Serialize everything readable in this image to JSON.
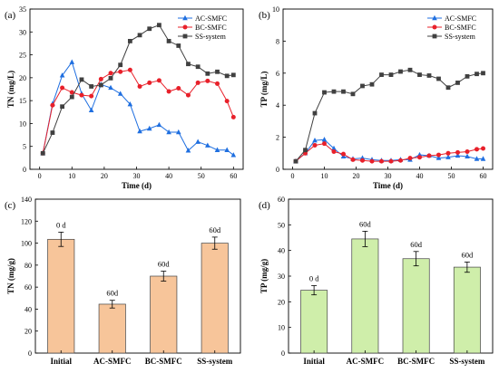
{
  "colors": {
    "ac": "#1f6fe0",
    "bc": "#e8202a",
    "ss": "#404040",
    "bar_tn": "#f7c59a",
    "bar_tp": "#cfeeaa"
  },
  "chart_data": [
    {
      "panel": "(a)",
      "type": "line",
      "xlabel": "Time (d)",
      "ylabel": "TN (mg/L)",
      "xlim": [
        -3,
        63
      ],
      "ylim": [
        0,
        35
      ],
      "xticks": [
        0,
        10,
        20,
        30,
        40,
        50,
        60
      ],
      "yticks": [
        0,
        5,
        10,
        15,
        20,
        25,
        30,
        35
      ],
      "legend": "top-right",
      "series": [
        {
          "name": "AC-SMFC",
          "marker": "triangle",
          "color_key": "ac",
          "x": [
            1,
            4,
            7,
            10,
            13,
            16,
            19,
            22,
            25,
            28,
            31,
            34,
            37,
            40,
            43,
            46,
            49,
            52,
            55,
            58,
            60
          ],
          "y": [
            3.5,
            14.3,
            20.5,
            23.4,
            16.5,
            12.9,
            18.5,
            17.8,
            16.5,
            14.2,
            8.3,
            8.9,
            9.7,
            8.1,
            8.1,
            4.1,
            6.0,
            5.2,
            4.2,
            4.2,
            3.1
          ]
        },
        {
          "name": "BC-SMFC",
          "marker": "circle",
          "color_key": "bc",
          "x": [
            1,
            4,
            7,
            10,
            13,
            16,
            19,
            22,
            25,
            28,
            31,
            34,
            37,
            40,
            43,
            46,
            49,
            52,
            55,
            58,
            60
          ],
          "y": [
            3.5,
            14.0,
            17.8,
            16.8,
            16.2,
            16.0,
            19.7,
            21.0,
            21.3,
            21.7,
            18.1,
            18.9,
            19.4,
            17.0,
            17.7,
            16.2,
            18.9,
            19.3,
            18.7,
            14.9,
            11.4
          ]
        },
        {
          "name": "SS-system",
          "marker": "square",
          "color_key": "ss",
          "x": [
            1,
            4,
            7,
            10,
            13,
            16,
            19,
            22,
            25,
            28,
            31,
            34,
            37,
            40,
            43,
            46,
            49,
            52,
            55,
            58,
            60
          ],
          "y": [
            3.5,
            8.0,
            13.7,
            15.8,
            19.6,
            18.1,
            18.4,
            19.9,
            22.8,
            28.0,
            29.3,
            30.7,
            31.5,
            28.0,
            27.0,
            23.0,
            22.4,
            20.9,
            21.3,
            20.4,
            20.6
          ]
        }
      ]
    },
    {
      "panel": "(b)",
      "type": "line",
      "xlabel": "Time (d)",
      "ylabel": "TP (mg/L)",
      "xlim": [
        -3,
        63
      ],
      "ylim": [
        0,
        10
      ],
      "xticks": [
        0,
        10,
        20,
        30,
        40,
        50,
        60
      ],
      "yticks": [
        0,
        2,
        4,
        6,
        8,
        10
      ],
      "legend": "top-right",
      "series": [
        {
          "name": "AC-SMFC",
          "marker": "triangle",
          "color_key": "ac",
          "x": [
            1,
            4,
            7,
            10,
            13,
            16,
            19,
            22,
            25,
            28,
            31,
            34,
            37,
            40,
            43,
            46,
            49,
            52,
            55,
            58,
            60
          ],
          "y": [
            0.5,
            1.0,
            1.8,
            1.85,
            1.3,
            0.8,
            0.65,
            0.7,
            0.6,
            0.55,
            0.55,
            0.6,
            0.6,
            0.9,
            0.85,
            0.7,
            0.75,
            0.85,
            0.8,
            0.65,
            0.65
          ]
        },
        {
          "name": "BC-SMFC",
          "marker": "circle",
          "color_key": "bc",
          "x": [
            1,
            4,
            7,
            10,
            13,
            16,
            19,
            22,
            25,
            28,
            31,
            34,
            37,
            40,
            43,
            46,
            49,
            52,
            55,
            58,
            60
          ],
          "y": [
            0.5,
            1.0,
            1.5,
            1.6,
            1.1,
            0.95,
            0.6,
            0.55,
            0.5,
            0.5,
            0.5,
            0.55,
            0.7,
            0.75,
            0.85,
            0.9,
            1.0,
            1.05,
            1.1,
            1.25,
            1.3
          ]
        },
        {
          "name": "SS-system",
          "marker": "square",
          "color_key": "ss",
          "x": [
            1,
            4,
            7,
            10,
            13,
            16,
            19,
            22,
            25,
            28,
            31,
            34,
            37,
            40,
            43,
            46,
            49,
            52,
            55,
            58,
            60
          ],
          "y": [
            0.5,
            1.2,
            3.5,
            4.8,
            4.85,
            4.85,
            4.7,
            5.2,
            5.3,
            5.9,
            5.9,
            6.1,
            6.2,
            5.9,
            5.85,
            5.65,
            5.1,
            5.4,
            5.8,
            5.95,
            6.0
          ]
        }
      ]
    },
    {
      "panel": "(c)",
      "type": "bar",
      "ylabel": "TN (mg/g)",
      "ylim": [
        0,
        140
      ],
      "yticks": [
        0,
        20,
        40,
        60,
        80,
        100,
        120,
        140
      ],
      "color_key": "bar_tn",
      "categories": [
        "Initial",
        "AC-SMFC",
        "BC-SMFC",
        "SS-system"
      ],
      "values": [
        103.5,
        44.5,
        70,
        100
      ],
      "errors": [
        6.5,
        3.5,
        4.5,
        5.5
      ],
      "labels": [
        "0 d",
        "60d",
        "60d",
        "60d"
      ]
    },
    {
      "panel": "(d)",
      "type": "bar",
      "ylabel": "TP (mg/g)",
      "ylim": [
        0,
        60
      ],
      "yticks": [
        0,
        10,
        20,
        30,
        40,
        50,
        60
      ],
      "color_key": "bar_tp",
      "categories": [
        "Initial",
        "AC-SMFC",
        "BC-SMFC",
        "SS-system"
      ],
      "values": [
        24.5,
        44.5,
        36.8,
        33.5
      ],
      "errors": [
        1.8,
        3.0,
        2.8,
        2.0
      ],
      "labels": [
        "0 d",
        "60d",
        "60d",
        "60d"
      ]
    }
  ]
}
